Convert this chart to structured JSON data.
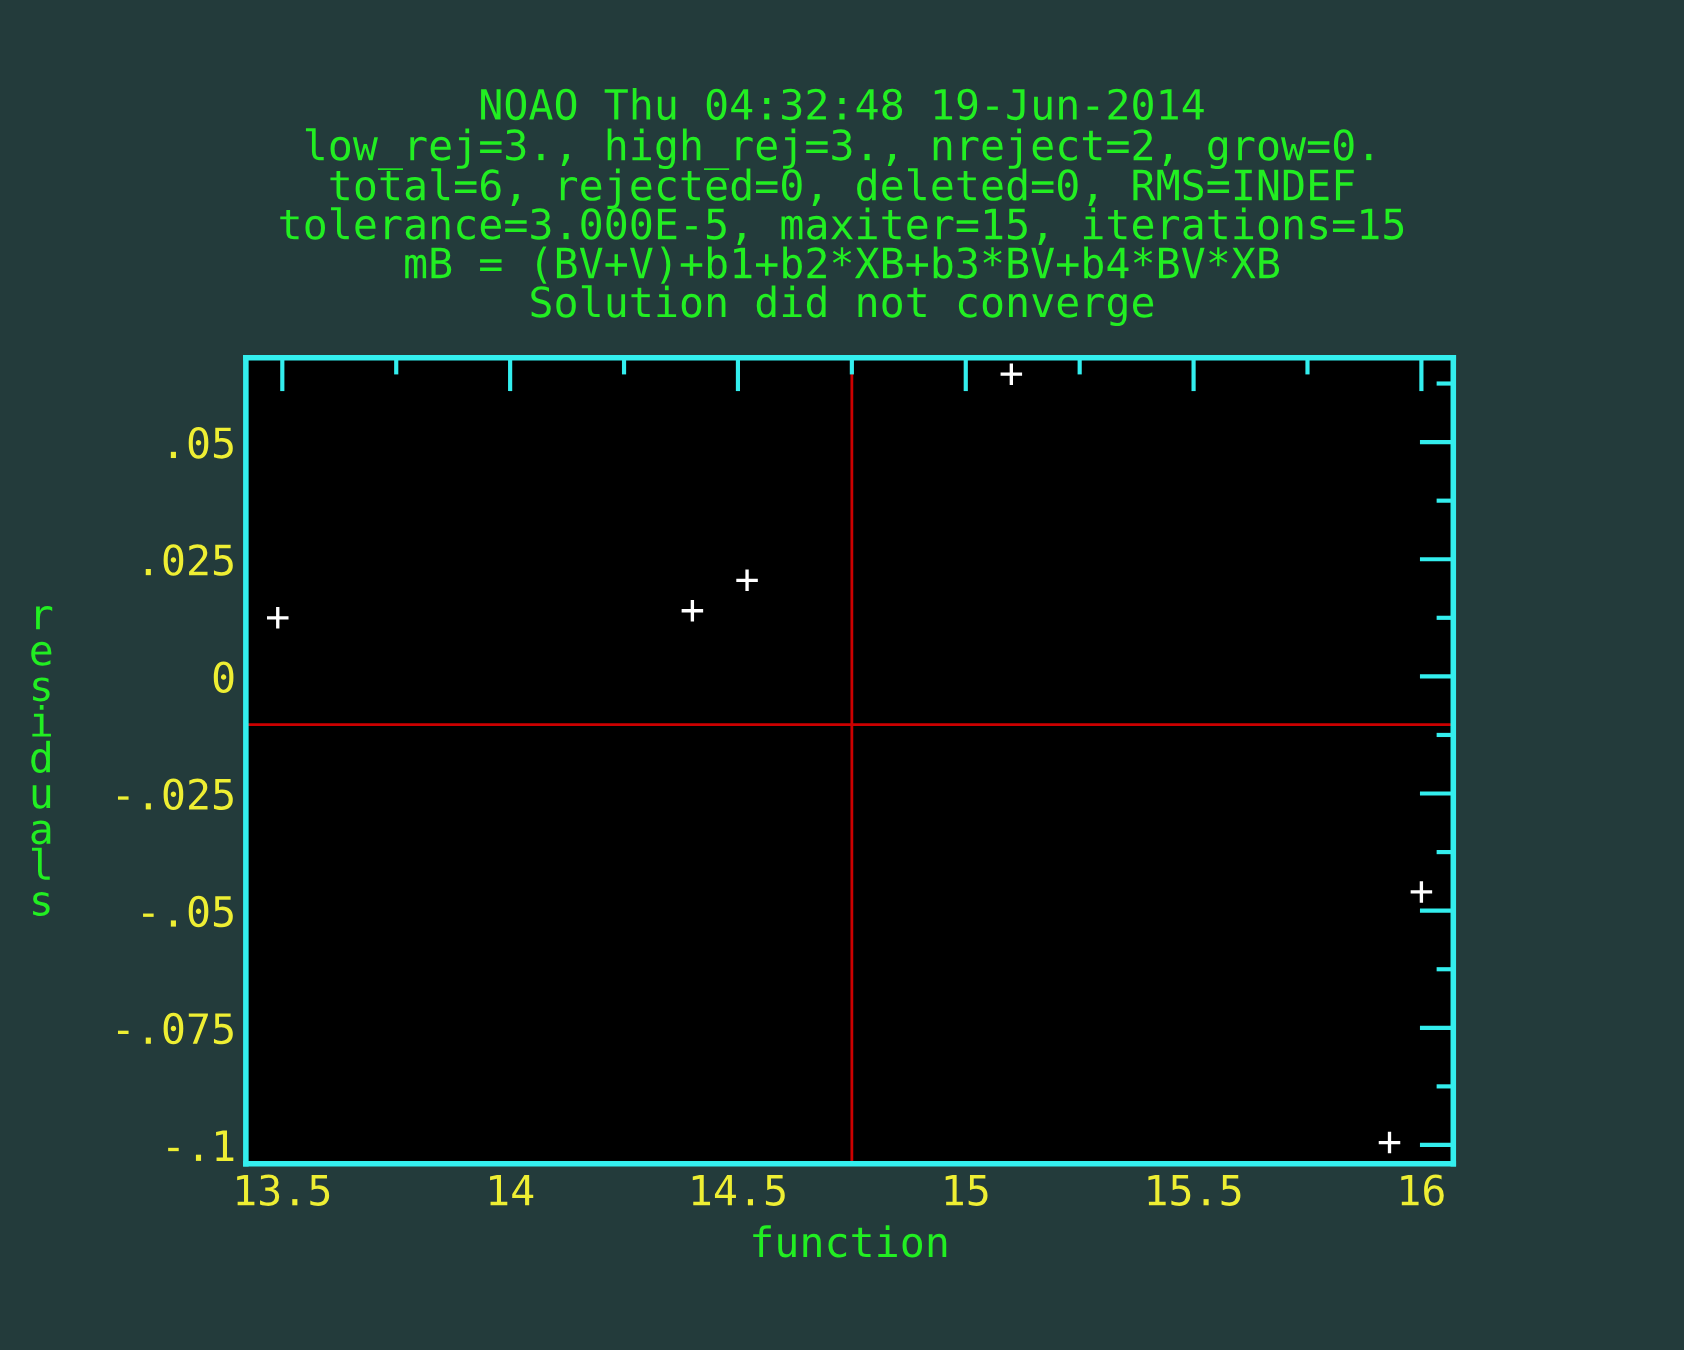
{
  "chart_data": {
    "type": "scatter",
    "title": "NOAO Thu 04:32:48 19-Jun-2014",
    "subtitle": "low_rej=3., high_rej=3., nreject=2, grow=0.\ntotal=6, rejected=0, deleted=0, RMS=INDEF\ntolerance=3.000E-5, maxiter=15, iterations=15\nmB = (BV+V)+b1+b2*XB+b3*BV+b4*BV*XB\nSolution did not converge",
    "xlabel": "function",
    "ylabel": "residuals",
    "x": [
      13.49,
      14.4,
      14.52,
      15.1,
      16.0,
      15.93
    ],
    "series": [
      {
        "color": "#ffffff",
        "values": [
          0.0125,
          0.014,
          0.0205,
          0.0645,
          -0.046,
          -0.0995
        ]
      }
    ],
    "marker": "cross",
    "xlim": [
      13.42,
      16.07
    ],
    "ylim": [
      -0.104,
      0.068
    ],
    "xticks": [
      13.5,
      14,
      14.5,
      15,
      15.5,
      16
    ],
    "yticks": [
      {
        "value": 0.05,
        "label": ".05"
      },
      {
        "value": 0.025,
        "label": ".025"
      },
      0,
      {
        "value": -0.025,
        "label": "-.025"
      },
      {
        "value": -0.05,
        "label": "-.05"
      },
      {
        "value": -0.075,
        "label": "-.075"
      },
      {
        "value": -0.1,
        "label": "-.1"
      }
    ],
    "ref_lines": [
      {
        "axis": "x",
        "value": 14.75,
        "color": "#cc0000"
      },
      {
        "axis": "y",
        "value": -0.0103,
        "color": "#cc0000"
      }
    ],
    "grid": false,
    "legend": false
  }
}
